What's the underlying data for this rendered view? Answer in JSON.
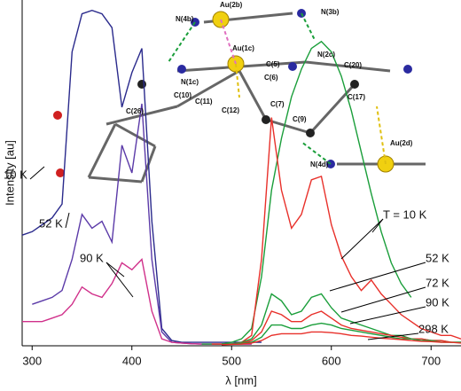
{
  "chart_data": {
    "type": "line",
    "xlabel": "λ [nm]",
    "ylabel": "Intensity [au]",
    "xlim": [
      290,
      730
    ],
    "xticks": [
      300,
      400,
      500,
      600,
      700
    ],
    "ylim": [
      0,
      100
    ],
    "x": [
      290,
      300,
      310,
      320,
      330,
      340,
      350,
      360,
      370,
      380,
      390,
      400,
      410,
      420,
      430,
      440,
      450,
      460,
      470,
      480,
      490,
      500,
      510,
      520,
      530,
      540,
      550,
      560,
      570,
      580,
      590,
      600,
      610,
      620,
      630,
      640,
      650,
      660,
      670,
      680,
      690,
      700,
      710,
      720,
      730
    ],
    "series": [
      {
        "name": "10 K",
        "color": "#2a2a8c",
        "values": [
          32,
          33,
          35,
          37,
          41,
          85,
          96,
          97,
          96,
          92,
          69,
          79,
          86,
          36,
          5,
          1.5,
          1,
          1,
          1,
          1,
          1,
          1,
          1,
          1,
          1,
          null,
          null,
          null,
          null,
          null,
          null,
          null,
          null,
          null,
          null,
          null,
          null,
          null,
          null,
          null,
          null,
          null,
          null,
          null,
          null
        ]
      },
      {
        "name": "52 K",
        "color": "#5b3aa8",
        "values": [
          null,
          12,
          13,
          14,
          16,
          25,
          38,
          34,
          36,
          30,
          58,
          50,
          70,
          25,
          4,
          1,
          0.8,
          0.6,
          0.5,
          0.5,
          0.5,
          0.5,
          0.5,
          0.5,
          null,
          null,
          null,
          null,
          null,
          null,
          null,
          null,
          null,
          null,
          null,
          null,
          null,
          null,
          null,
          null,
          null,
          null,
          null,
          null,
          null
        ]
      },
      {
        "name": "90 K",
        "color": "#d0308a",
        "values": [
          7,
          7,
          7,
          8,
          9,
          12,
          17,
          15,
          14,
          18,
          24,
          22,
          25,
          10,
          2,
          1,
          0.8,
          0.6,
          0.5,
          0.5,
          0.5,
          0.5,
          0.5,
          0.5,
          null,
          null,
          null,
          null,
          null,
          null,
          null,
          null,
          null,
          null,
          null,
          null,
          null,
          null,
          null,
          null,
          null,
          null,
          null,
          null,
          null
        ]
      },
      {
        "color": "#1a9e3a",
        "values": [
          null,
          null,
          null,
          null,
          null,
          null,
          null,
          null,
          null,
          null,
          null,
          null,
          null,
          null,
          null,
          null,
          null,
          null,
          0.5,
          0.5,
          0.5,
          1,
          2,
          5,
          20,
          45,
          60,
          72,
          80,
          86,
          88,
          85,
          78,
          68,
          56,
          44,
          33,
          24,
          18,
          14,
          null,
          null,
          null,
          null,
          null
        ]
      },
      {
        "name": "T = 10 K",
        "color": "#e8302a",
        "values": [
          null,
          null,
          null,
          null,
          null,
          null,
          null,
          null,
          null,
          null,
          null,
          null,
          null,
          null,
          null,
          null,
          null,
          null,
          null,
          0.5,
          0.5,
          0.5,
          1,
          3,
          25,
          66,
          45,
          34,
          38,
          48,
          49,
          35,
          26,
          20,
          16,
          19,
          15,
          12,
          9,
          7,
          5,
          4,
          3,
          3,
          2
        ]
      },
      {
        "name": "52 K",
        "color": "#1a9e3a",
        "values": [
          null,
          null,
          null,
          null,
          null,
          null,
          null,
          null,
          null,
          null,
          null,
          null,
          null,
          null,
          null,
          null,
          null,
          null,
          null,
          null,
          0.5,
          0.5,
          1,
          2,
          6,
          15,
          13,
          9,
          10,
          14,
          15,
          11,
          8,
          7,
          6,
          5,
          4,
          3,
          3,
          2,
          2,
          1.5,
          1.5,
          1,
          1
        ]
      },
      {
        "name": "72 K",
        "color": "#e8302a",
        "values": [
          null,
          null,
          null,
          null,
          null,
          null,
          null,
          null,
          null,
          null,
          null,
          null,
          null,
          null,
          null,
          null,
          null,
          null,
          null,
          null,
          0.5,
          0.5,
          0.8,
          1.5,
          4,
          10,
          9,
          7,
          7,
          9,
          10,
          8,
          6,
          5,
          4.5,
          4,
          3.5,
          3,
          2.5,
          2,
          2,
          1.5,
          1.5,
          1,
          1
        ]
      },
      {
        "name": "90 K",
        "color": "#1a9e3a",
        "values": [
          null,
          null,
          null,
          null,
          null,
          null,
          null,
          null,
          null,
          null,
          null,
          null,
          null,
          null,
          null,
          null,
          null,
          null,
          null,
          null,
          0.5,
          0.5,
          0.7,
          1,
          2.5,
          6,
          6,
          5,
          5,
          6,
          6.5,
          6,
          5,
          4.5,
          4,
          3.5,
          3,
          2.5,
          2,
          2,
          1.5,
          1.5,
          1,
          1,
          1
        ]
      },
      {
        "name": "298 K",
        "color": "#e8302a",
        "values": [
          null,
          null,
          null,
          null,
          null,
          null,
          null,
          null,
          null,
          null,
          null,
          null,
          null,
          null,
          null,
          null,
          null,
          null,
          null,
          null,
          0.3,
          0.4,
          0.5,
          0.8,
          1.5,
          3,
          3.5,
          3.5,
          3.5,
          4,
          4,
          3.8,
          3.5,
          3,
          2.8,
          2.5,
          2.2,
          2,
          1.8,
          1.5,
          1.3,
          1.2,
          1,
          1,
          0.8
        ]
      }
    ],
    "annotations": [
      "N(4b)",
      "Au(2b)",
      "N(3b)",
      "Au(1c)",
      "N(1c)",
      "N(2c)",
      "C(6)",
      "C(5)",
      "C(26)",
      "C(10)",
      "C(11)",
      "C(12)",
      "C(7)",
      "C(20)",
      "C(17)",
      "C(9)",
      "Au(2d)",
      "N(4d)"
    ]
  }
}
